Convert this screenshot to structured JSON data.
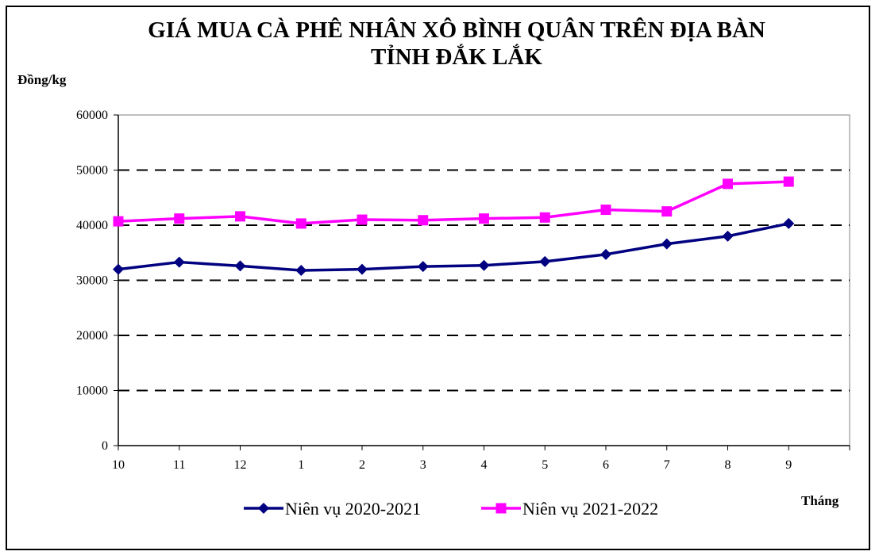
{
  "chart_data": {
    "type": "line",
    "title_line1": "GIÁ MUA CÀ PHÊ NHÂN XÔ BÌNH QUÂN TRÊN ĐỊA BÀN",
    "title_line2": "TỈNH ĐẮK LẮK",
    "ylabel": "Đồng/kg",
    "xlabel": "Tháng",
    "ylim": [
      0,
      60000
    ],
    "yticks": [
      0,
      10000,
      20000,
      30000,
      40000,
      50000,
      60000
    ],
    "categories": [
      "10",
      "11",
      "12",
      "1",
      "2",
      "3",
      "4",
      "5",
      "6",
      "7",
      "8",
      "9"
    ],
    "grid": "dashed horizontal at 10000, 20000, 30000, 40000, 50000",
    "legend_position": "bottom",
    "series": [
      {
        "name": "Niên vụ 2020-2021",
        "color": "#000080",
        "marker": "diamond",
        "values": [
          32000,
          33300,
          32600,
          31800,
          32000,
          32500,
          32700,
          33400,
          34700,
          36600,
          38000,
          40300
        ]
      },
      {
        "name": "Niên vụ 2021-2022",
        "color": "#ff00ff",
        "marker": "square",
        "values": [
          40700,
          41200,
          41600,
          40300,
          41000,
          40900,
          41200,
          41400,
          42800,
          42500,
          47500,
          47900
        ]
      }
    ]
  }
}
